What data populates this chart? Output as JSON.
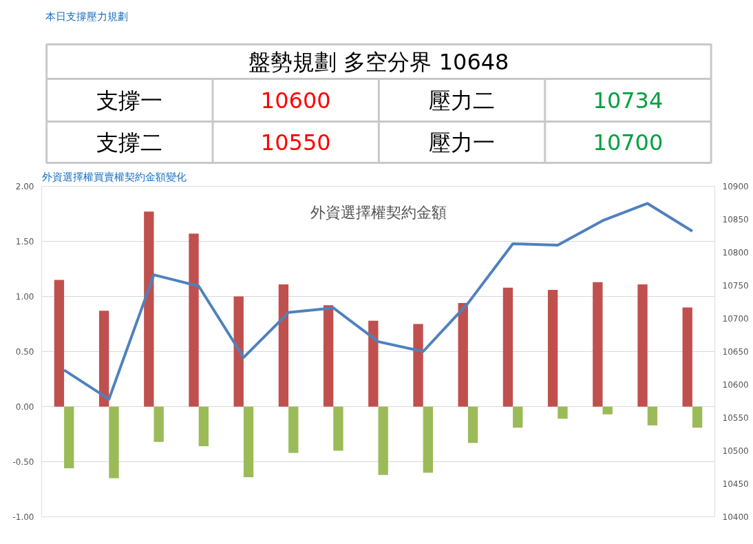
{
  "chart_data": [
    {
      "type": "other",
      "title": "本日支撐壓力規劃",
      "annotations": [
        "盤勢規劃 多空分界 10648",
        "支撐一",
        "10600",
        "壓力二",
        "10734",
        "支撐二",
        "10550",
        "壓力一",
        "10700"
      ],
      "colors": [
        "#000000",
        "#000000",
        "#ff0000",
        "#000000",
        "#00a040",
        "#000000",
        "#ff0000",
        "#000000",
        "#00a040"
      ]
    },
    {
      "type": "bar",
      "title": "外資選擇權買賣權契約金額變化",
      "subtitle": "外資選擇權契約金額",
      "categories": [
        null,
        null,
        null,
        null,
        null,
        null,
        null,
        null,
        null,
        null,
        null,
        null,
        null,
        null,
        null
      ],
      "series": [
        {
          "color": "#c0504d",
          "values": [
            1.15,
            0.87,
            1.77,
            1.57,
            1.0,
            1.11,
            0.92,
            0.78,
            0.75,
            0.94,
            1.08,
            1.06,
            1.13,
            1.11,
            0.9
          ]
        },
        {
          "color": "#9bbb59",
          "values": [
            -0.56,
            -0.65,
            -0.32,
            -0.36,
            -0.64,
            -0.42,
            -0.4,
            -0.62,
            -0.6,
            -0.33,
            -0.19,
            -0.11,
            -0.07,
            -0.17,
            -0.19
          ]
        },
        {
          "type": "line",
          "axis": "y2",
          "color": "#4f81bd",
          "values": [
            10622,
            10578,
            10766,
            10749,
            10641,
            10709,
            10716,
            10665,
            10650,
            10723,
            10813,
            10811,
            10848,
            10874,
            10832
          ]
        }
      ],
      "ylim": [
        -1,
        2
      ],
      "yticks": [
        {
          "value": -1,
          "label": "-1.00"
        },
        {
          "value": -0.5,
          "label": "-0.50"
        },
        {
          "value": 0,
          "label": "0.00"
        },
        {
          "value": 0.5,
          "label": "0.50"
        },
        {
          "value": 1,
          "label": "1.00"
        },
        {
          "value": 1.5,
          "label": "1.50"
        },
        {
          "value": 2,
          "label": "2.00"
        }
      ],
      "y2lim": [
        10400,
        10900
      ],
      "y2ticks": [
        10400,
        10450,
        10500,
        10550,
        10600,
        10650,
        10700,
        10750,
        10800,
        10850,
        10900
      ],
      "grid": "y"
    }
  ]
}
